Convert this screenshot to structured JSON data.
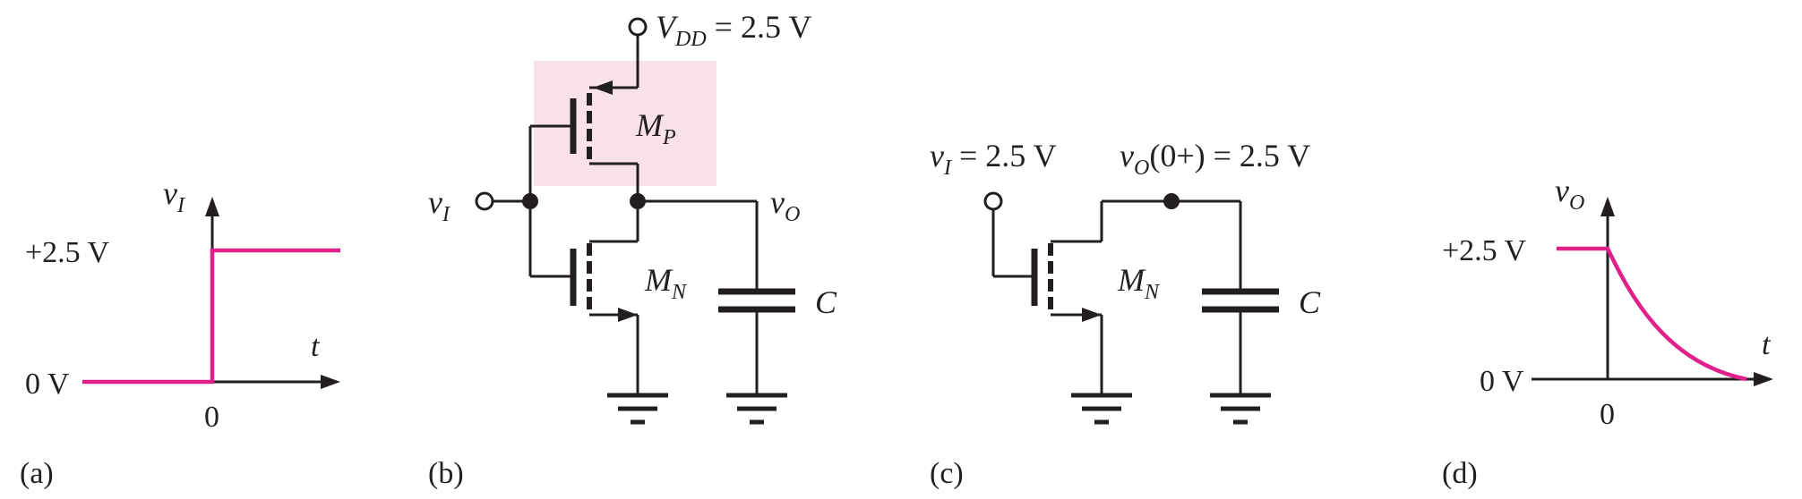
{
  "colors": {
    "signal": "#e0218a",
    "highlight": "#f9e1ec",
    "ink": "#231f20"
  },
  "panel_a": {
    "caption": "(a)",
    "y_axis_var": "v",
    "y_axis_sub": "I",
    "high_label": "+2.5 V",
    "low_label": "0 V",
    "x_axis_label": "t",
    "origin_label": "0"
  },
  "panel_b": {
    "caption": "(b)",
    "vdd_var": "V",
    "vdd_sub": "DD",
    "vdd_value": " = 2.5 V",
    "pmos_name": "M",
    "pmos_sub": "P",
    "nmos_name": "M",
    "nmos_sub": "N",
    "input_var": "v",
    "input_sub": "I",
    "output_var": "v",
    "output_sub": "O",
    "cap_label": "C"
  },
  "panel_c": {
    "caption": "(c)",
    "input_var": "v",
    "input_sub": "I",
    "input_value": " = 2.5 V",
    "output_var": "v",
    "output_sub": "O",
    "output_value": "(0+) = 2.5 V",
    "nmos_name": "M",
    "nmos_sub": "N",
    "cap_label": "C"
  },
  "panel_d": {
    "caption": "(d)",
    "y_axis_var": "v",
    "y_axis_sub": "O",
    "high_label": "+2.5 V",
    "low_label": "0 V",
    "x_axis_label": "t",
    "origin_label": "0"
  }
}
